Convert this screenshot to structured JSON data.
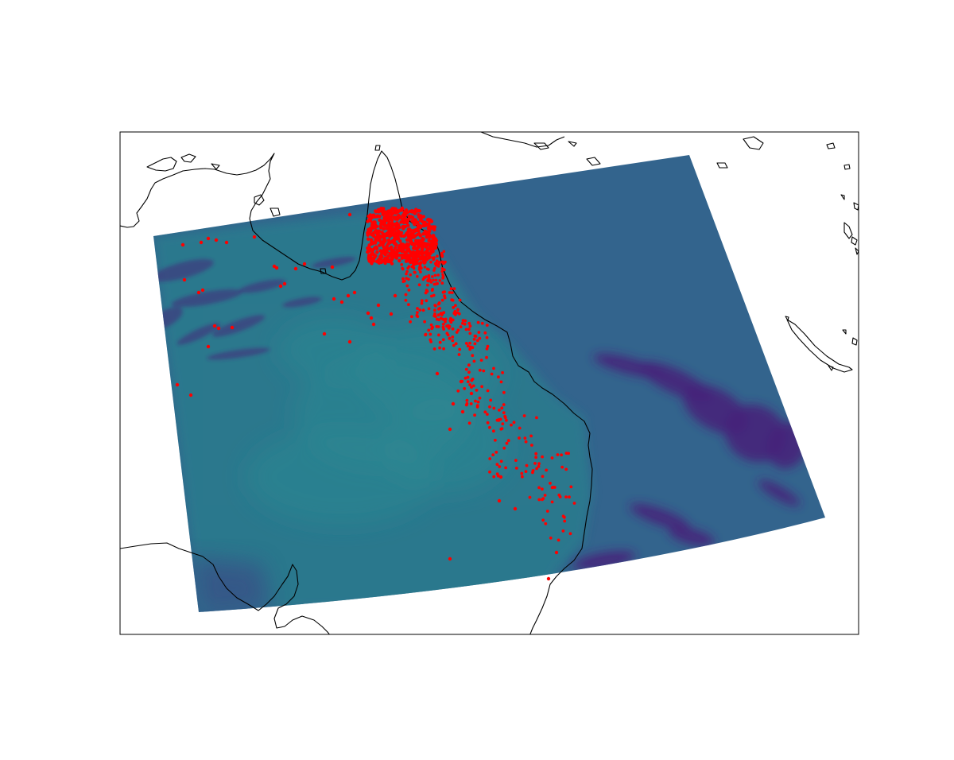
{
  "map": {
    "projection": "conic",
    "swath_color": "#33648d",
    "hotspot_color": "#ff0000",
    "coastline_color": "#000000",
    "frame_color": "#000000",
    "cloud_color": "#46247a",
    "land_color": "#2a7b8e"
  }
}
